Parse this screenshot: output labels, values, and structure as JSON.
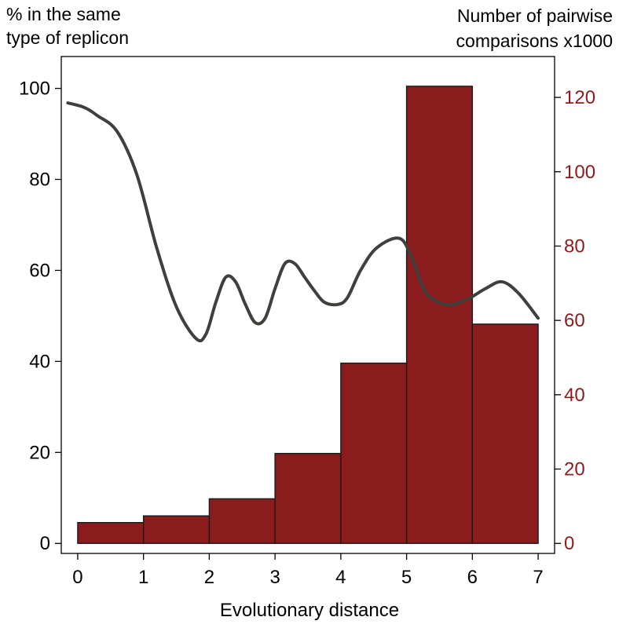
{
  "chart_data": {
    "type": "bar",
    "xlabel": "Evolutionary distance",
    "ylabel_left": [
      "% in the same",
      "type of replicon"
    ],
    "ylabel_right": [
      "Number of pairwise",
      "comparisons x1000"
    ],
    "xlim": [
      -0.25,
      7.25
    ],
    "x_ticks": [
      0,
      1,
      2,
      3,
      4,
      5,
      6,
      7
    ],
    "ylim_left": [
      -2.2,
      107
    ],
    "y_ticks_left": [
      0,
      20,
      40,
      60,
      80,
      100
    ],
    "ylim_right": [
      -2.7,
      131
    ],
    "y_ticks_right": [
      0,
      20,
      40,
      60,
      80,
      100,
      120
    ],
    "grid": false,
    "bars": {
      "axis": "right",
      "bin_edges": [
        0,
        1,
        2,
        3,
        4,
        5,
        6,
        7
      ],
      "values": [
        5.6,
        7.4,
        12,
        24.2,
        48.5,
        123,
        59
      ],
      "color": "#8b1c1e"
    },
    "line": {
      "axis": "left",
      "color": "#3f3f3c",
      "x": [
        -0.15,
        0.1,
        0.3,
        0.6,
        0.9,
        1.2,
        1.5,
        1.8,
        1.95,
        2.1,
        2.25,
        2.4,
        2.55,
        2.7,
        2.85,
        3.0,
        3.15,
        3.3,
        3.45,
        3.6,
        3.75,
        3.95,
        4.1,
        4.3,
        4.55,
        4.9,
        5.1,
        5.3,
        5.6,
        5.9,
        6.2,
        6.45,
        6.7,
        7.0
      ],
      "y": [
        96.8,
        95.8,
        94,
        90.5,
        81,
        65,
        52,
        45,
        46,
        53,
        58.5,
        57.5,
        52.5,
        48.5,
        49.5,
        56,
        61.5,
        61.5,
        58.5,
        55.5,
        53,
        52.5,
        54,
        60,
        65,
        67,
        62,
        55,
        52.5,
        53.5,
        56,
        57.5,
        55,
        49.5
      ]
    },
    "axis_colors": {
      "left": "#000000",
      "right": "#8b1c1e"
    }
  }
}
